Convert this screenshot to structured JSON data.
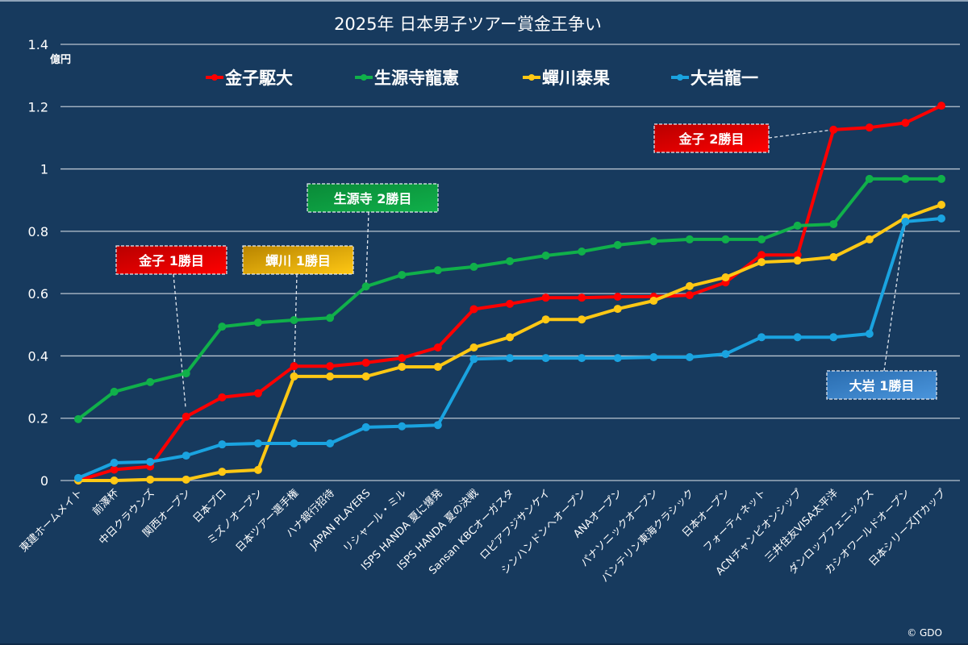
{
  "chart_data": {
    "type": "line",
    "title": "2025年 日本男子ツアー賞金王争い",
    "ylabel": "億円",
    "xlabel": "",
    "ylim": [
      0,
      1.4
    ],
    "yticks": [
      "0",
      "0.2",
      "0.4",
      "0.6",
      "0.8",
      "1",
      "1.2",
      "1.4"
    ],
    "ytick_values": [
      0,
      0.2,
      0.4,
      0.6,
      0.8,
      1.0,
      1.2,
      1.4
    ],
    "grid": true,
    "legend_position": "top",
    "categories": [
      "東建ホームメイト",
      "前澤杯",
      "中日クラウンズ",
      "関西オープン",
      "日本プロ",
      "ミズノオープン",
      "日本ツアー選手権",
      "ハナ銀行招待",
      "JAPAN PLAYERS",
      "リシャール・ミル",
      "ISPS HANDA 夏に爆発",
      "ISPS HANDA 夏の決戦",
      "Sansan KBCオーガスタ",
      "ロピアフジサンケイ",
      "シンハンドンヘオープン",
      "ANAオープン",
      "パナソニックオープン",
      "バンテリン東海クラシック",
      "日本オープン",
      "フォーティネット",
      "ACNチャンピオンシップ",
      "三井住友VISA太平洋",
      "ダンロップフェニックス",
      "カシオワールドオープン",
      "日本シリーズJTカップ"
    ],
    "series": [
      {
        "name": "金子駆大",
        "color": "#ff0000",
        "values": [
          0.0,
          0.035,
          0.045,
          0.205,
          0.267,
          0.28,
          0.367,
          0.367,
          0.378,
          0.393,
          0.427,
          0.55,
          0.567,
          0.587,
          0.587,
          0.59,
          0.59,
          0.595,
          0.636,
          0.724,
          0.724,
          1.126,
          1.133,
          1.148,
          1.203
        ]
      },
      {
        "name": "生源寺龍憲",
        "color": "#10b04a",
        "values": [
          0.197,
          0.285,
          0.316,
          0.344,
          0.494,
          0.507,
          0.515,
          0.522,
          0.623,
          0.66,
          0.675,
          0.686,
          0.704,
          0.722,
          0.735,
          0.756,
          0.768,
          0.774,
          0.774,
          0.774,
          0.818,
          0.823,
          0.968,
          0.968,
          0.968
        ]
      },
      {
        "name": "蟬川泰果",
        "color": "#ffc814",
        "values": [
          0.0,
          0.0,
          0.003,
          0.003,
          0.028,
          0.034,
          0.334,
          0.334,
          0.334,
          0.365,
          0.365,
          0.427,
          0.46,
          0.517,
          0.517,
          0.551,
          0.577,
          0.624,
          0.652,
          0.701,
          0.706,
          0.717,
          0.774,
          0.844,
          0.885
        ]
      },
      {
        "name": "大岩龍一",
        "color": "#1aa3e0",
        "values": [
          0.008,
          0.057,
          0.06,
          0.08,
          0.116,
          0.119,
          0.119,
          0.119,
          0.171,
          0.174,
          0.178,
          0.39,
          0.393,
          0.393,
          0.393,
          0.393,
          0.396,
          0.396,
          0.406,
          0.46,
          0.46,
          0.46,
          0.471,
          0.831,
          0.841
        ]
      }
    ],
    "annotations": [
      {
        "text": "金子 1勝目",
        "series": 0,
        "point_index": 3,
        "color_from": "#b80000",
        "color_to": "#ff0000"
      },
      {
        "text": "蟬川 1勝目",
        "series": 2,
        "point_index": 6,
        "color_from": "#b88400",
        "color_to": "#ffc814"
      },
      {
        "text": "生源寺 2勝目",
        "series": 1,
        "point_index": 8,
        "color_from": "#0a8a38",
        "color_to": "#10b04a"
      },
      {
        "text": "金子 2勝目",
        "series": 0,
        "point_index": 21,
        "color_from": "#b80000",
        "color_to": "#ff0000"
      },
      {
        "text": "大岩 1勝目",
        "series": 3,
        "point_index": 23,
        "color_from": "#2a6db0",
        "color_to": "#4a95dc"
      }
    ]
  },
  "copyright": "© GDO",
  "colors": {
    "background": "#173a5e",
    "grid": "#b8c4d0",
    "leader": "#e0e6ee"
  }
}
